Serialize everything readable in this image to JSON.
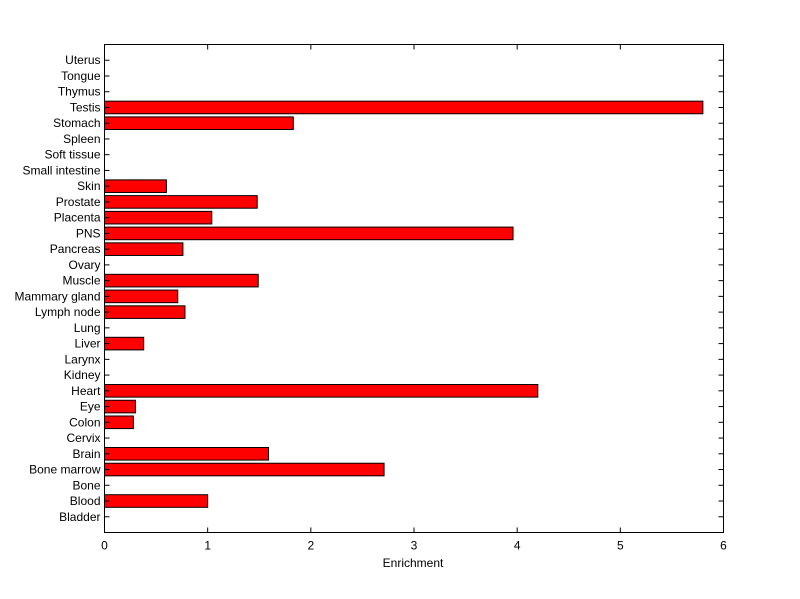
{
  "chart_data": {
    "type": "bar",
    "orientation": "horizontal",
    "title": "",
    "xlabel": "Enrichment",
    "ylabel": "",
    "xlim": [
      0,
      6
    ],
    "x_ticks": [
      "0",
      "1",
      "2",
      "3",
      "4",
      "5",
      "6"
    ],
    "grid": false,
    "bar_color": "#ff0000",
    "categories": [
      "Bladder",
      "Blood",
      "Bone",
      "Bone marrow",
      "Brain",
      "Cervix",
      "Colon",
      "Eye",
      "Heart",
      "Kidney",
      "Larynx",
      "Liver",
      "Lung",
      "Lymph node",
      "Mammary gland",
      "Muscle",
      "Ovary",
      "Pancreas",
      "PNS",
      "Placenta",
      "Prostate",
      "Skin",
      "Small intestine",
      "Soft tissue",
      "Spleen",
      "Stomach",
      "Testis",
      "Thymus",
      "Tongue",
      "Uterus"
    ],
    "values": [
      0,
      1.0,
      0,
      2.71,
      1.59,
      0,
      0.28,
      0.3,
      4.2,
      0,
      0,
      0.38,
      0,
      0.78,
      0.71,
      1.49,
      0,
      0.76,
      3.96,
      1.04,
      1.48,
      0.6,
      0,
      0,
      0,
      1.83,
      5.8,
      0,
      0,
      0
    ]
  }
}
